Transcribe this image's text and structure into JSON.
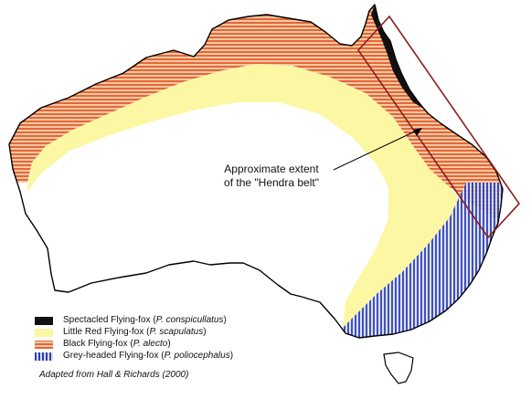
{
  "map": {
    "callout": {
      "line1": "Approximate extent",
      "line2": "of the \"Hendra belt\""
    },
    "legend": [
      {
        "common": "Spectacled Flying-fox",
        "latin": "P. conspicullatus",
        "color": "#111111"
      },
      {
        "common": "Little Red Flying-fox",
        "latin": "P. scapulatus",
        "color": "#fbf7a3"
      },
      {
        "common": "Black Flying-fox",
        "latin": "P. alecto",
        "color": "#e4673a"
      },
      {
        "common": "Grey-headed Flying-fox",
        "latin": "P. poliocephalus",
        "color": "#2c3fb4"
      }
    ],
    "credit": "Adapted from Hall & Richards (2000)",
    "colors": {
      "land": "#ffffff",
      "outline": "#000000",
      "hendra_belt_box": "#8b1c1c"
    }
  }
}
